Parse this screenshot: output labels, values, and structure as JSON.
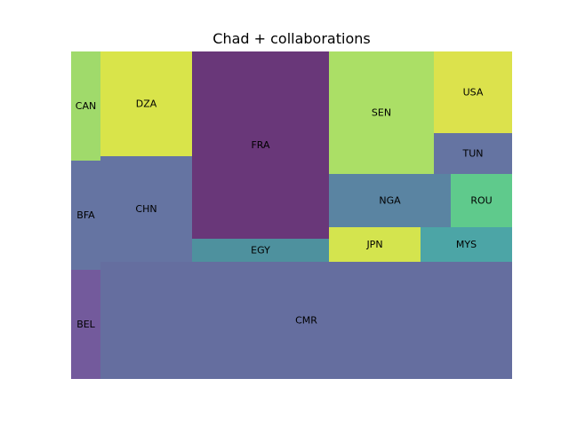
{
  "chart_data": {
    "type": "treemap",
    "title": "Chad + collaborations",
    "cells": [
      {
        "label": "CAN",
        "color": "#a0da6b"
      },
      {
        "label": "BFA",
        "color": "#6574a2"
      },
      {
        "label": "BEL",
        "color": "#735a9c"
      },
      {
        "label": "DZA",
        "color": "#d9e44a"
      },
      {
        "label": "CHN",
        "color": "#6574a2"
      },
      {
        "label": "FRA",
        "color": "#693779"
      },
      {
        "label": "EGY",
        "color": "#4e919e"
      },
      {
        "label": "CMR",
        "color": "#656e9f"
      },
      {
        "label": "SEN",
        "color": "#abdf66"
      },
      {
        "label": "USA",
        "color": "#dce24c"
      },
      {
        "label": "TUN",
        "color": "#6574a2"
      },
      {
        "label": "NGA",
        "color": "#5a84a2"
      },
      {
        "label": "ROU",
        "color": "#5fca8c"
      },
      {
        "label": "JPN",
        "color": "#d4e44e"
      },
      {
        "label": "MYS",
        "color": "#4ca5a6"
      }
    ]
  }
}
